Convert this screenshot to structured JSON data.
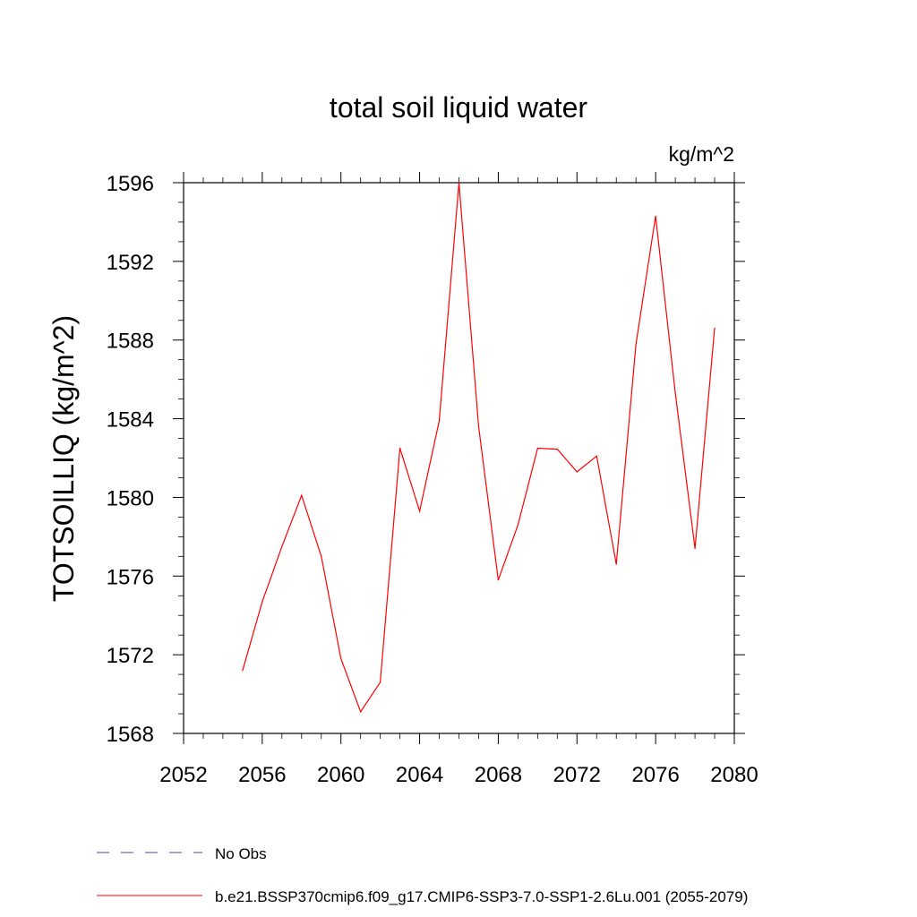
{
  "chart_data": {
    "type": "line",
    "title": "total soil liquid water",
    "units": "kg/m^2",
    "ylabel": "TOTSOILLIQ  (kg/m^2)",
    "xlabel": "",
    "xlim": [
      2052,
      2080
    ],
    "ylim": [
      1568,
      1596
    ],
    "x_ticks": [
      2052,
      2056,
      2060,
      2064,
      2068,
      2072,
      2076,
      2080
    ],
    "y_ticks": [
      1568,
      1572,
      1576,
      1580,
      1584,
      1588,
      1592,
      1596
    ],
    "grid": false,
    "legend_position": "bottom-left",
    "legend": [
      {
        "label": "No Obs",
        "color": "#5a3fa0",
        "dash": "dashed"
      },
      {
        "label": "b.e21.BSSP370cmip6.f09_g17.CMIP6-SSP3-7.0-SSP1-2.6Lu.001 (2055-2079)",
        "color": "#ff0000",
        "dash": "solid"
      }
    ],
    "series": [
      {
        "name": "b.e21.BSSP370cmip6.f09_g17.CMIP6-SSP3-7.0-SSP1-2.6Lu.001 (2055-2079)",
        "color": "#ff0000",
        "x": [
          2055,
          2056,
          2057,
          2058,
          2059,
          2060,
          2061,
          2062,
          2063,
          2064,
          2065,
          2066,
          2067,
          2068,
          2069,
          2070,
          2071,
          2072,
          2073,
          2074,
          2075,
          2076,
          2077,
          2078,
          2079
        ],
        "values": [
          1571.2,
          1574.7,
          1577.5,
          1580.1,
          1577.0,
          1571.8,
          1569.1,
          1570.6,
          1582.5,
          1579.3,
          1583.9,
          1596.0,
          1583.6,
          1575.8,
          1578.6,
          1582.5,
          1582.45,
          1581.3,
          1582.1,
          1576.6,
          1587.8,
          1594.3,
          1585.3,
          1577.4,
          1588.6
        ]
      }
    ]
  }
}
